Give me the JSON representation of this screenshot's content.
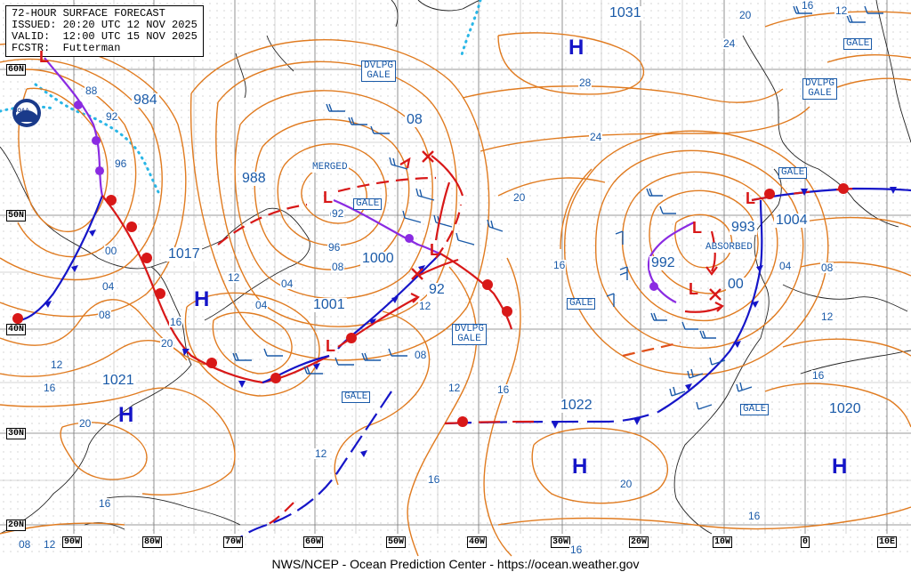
{
  "header": {
    "line1": "72-HOUR SURFACE FORECAST",
    "line2": "ISSUED: 20:20 UTC 12 NOV 2025",
    "line3": "VALID:  12:00 UTC 15 NOV 2025",
    "line4": "FCSTR:  Futterman"
  },
  "footer": "NWS/NCEP - Ocean Prediction Center - https://ocean.weather.gov",
  "logo_text": "NOAA",
  "lat_labels": [
    "60N",
    "50N",
    "40N",
    "30N",
    "20N"
  ],
  "lon_labels": [
    "90W",
    "80W",
    "70W",
    "60W",
    "50W",
    "40W",
    "30W",
    "20W",
    "10W",
    "0",
    "10E"
  ],
  "box_labels": {
    "dvlpg_gale_1": "DVLPG\nGALE",
    "dvlpg_gale_2": "DVLPG\nGALE",
    "dvlpg_gale_3": "DVLPG\nGALE",
    "gale_1": "GALE",
    "gale_2": "GALE",
    "gale_3": "GALE",
    "gale_4": "GALE",
    "gale_5": "GALE",
    "gale_6": "GALE"
  },
  "pressures": {
    "p984": "984",
    "p988": "988",
    "p1031": "1031",
    "p1017": "1017",
    "p1021": "1021",
    "p1000": "1000",
    "p1001": "1001",
    "p08": "08",
    "p92": "92",
    "p993": "993",
    "p992": "992",
    "p1004": "1004",
    "p00": "00",
    "p1022": "1022",
    "p1020": "1020"
  },
  "notes": {
    "merged": "MERGED",
    "absorbed": "ABSORBED"
  },
  "isobar_labels": [
    "88",
    "92",
    "96",
    "00",
    "04",
    "08",
    "12",
    "16",
    "20",
    "12",
    "16",
    "20",
    "24",
    "28",
    "24",
    "20",
    "16",
    "12",
    "08",
    "04",
    "00",
    "96",
    "92",
    "12",
    "08",
    "04",
    "08",
    "12",
    "16",
    "16",
    "20",
    "16",
    "12",
    "16",
    "16",
    "04",
    "08",
    "12",
    "16",
    "12",
    "20",
    "16"
  ],
  "high_symbol": "H",
  "low_symbol": "L",
  "colors": {
    "isobar": "#e07b20",
    "grid": "#777777",
    "coast": "#222222",
    "label": "#1a5aa8",
    "cold_front": "#1515c8",
    "warm_front": "#d81818",
    "occluded": "#8a2be2",
    "ice": "#29b6e6"
  }
}
